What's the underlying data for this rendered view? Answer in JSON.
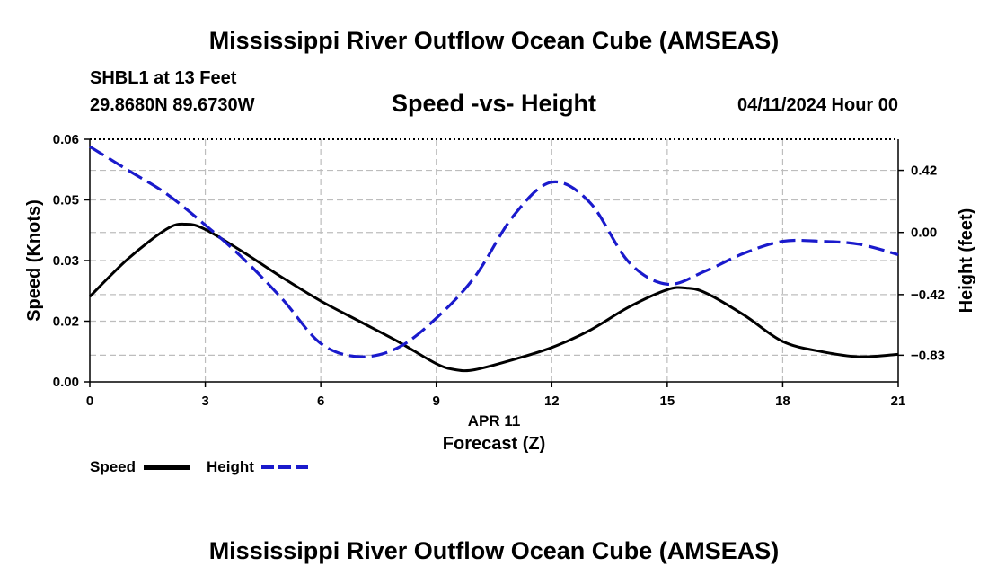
{
  "titles": {
    "main": "Mississippi River Outflow Ocean Cube (AMSEAS)",
    "station": "SHBL1 at 13 Feet",
    "coords": "29.8680N  89.6730W",
    "subtitle": "Speed -vs- Height",
    "datetime": "04/11/2024 Hour 00",
    "bottom": "Mississippi River Outflow Ocean Cube (AMSEAS)"
  },
  "colors": {
    "speed": "#000000",
    "height": "#1a1acc",
    "grid": "#bdbdbd"
  },
  "chart_data": {
    "type": "line",
    "title": "Speed -vs- Height",
    "xlabel": "Forecast (Z)",
    "xsublabel": "APR 11",
    "ylabel": "Speed (Knots)",
    "y2label": "Height (feet)",
    "xlim": [
      0,
      21
    ],
    "ylim": [
      0,
      0.06
    ],
    "y2lim": [
      -1.01,
      0.63
    ],
    "x_ticks": [
      0,
      3,
      6,
      9,
      12,
      15,
      18,
      21
    ],
    "x_tick_labels": [
      "0",
      "3",
      "6",
      "9",
      "12",
      "15",
      "18",
      "21"
    ],
    "y_ticks": [
      0,
      0.015,
      0.03,
      0.045,
      0.06
    ],
    "y_tick_labels": [
      "0.00",
      "0.02",
      "0.03",
      "0.05",
      "0.06"
    ],
    "y2_ticks": [
      -0.83,
      -0.42,
      0.0,
      0.42
    ],
    "y2_tick_labels": [
      "−0.83",
      "−0.42",
      "0.00",
      "0.42"
    ],
    "grid": true,
    "legend_position": "bottom-left",
    "series": [
      {
        "name": "Speed",
        "axis": "left",
        "style": "solid",
        "x": [
          0,
          1,
          2,
          2.5,
          3,
          4,
          5,
          6,
          7,
          8,
          9,
          9.5,
          10,
          11,
          12,
          13,
          14,
          15,
          15.5,
          16,
          17,
          18,
          19,
          20,
          21
        ],
        "y": [
          0.0211,
          0.0305,
          0.0378,
          0.039,
          0.0377,
          0.032,
          0.0258,
          0.02,
          0.015,
          0.01,
          0.0045,
          0.003,
          0.003,
          0.0055,
          0.0085,
          0.0128,
          0.0185,
          0.0228,
          0.0232,
          0.022,
          0.0165,
          0.01,
          0.0075,
          0.0062,
          0.0068
        ]
      },
      {
        "name": "Height",
        "axis": "right",
        "style": "dashed",
        "x": [
          0,
          1,
          2,
          3,
          4,
          5,
          6,
          7,
          8,
          9,
          10,
          11,
          12,
          13,
          14,
          15,
          16,
          17,
          18,
          19,
          20,
          21
        ],
        "y": [
          0.58,
          0.42,
          0.26,
          0.05,
          -0.18,
          -0.45,
          -0.75,
          -0.84,
          -0.78,
          -0.58,
          -0.3,
          0.11,
          0.34,
          0.2,
          -0.2,
          -0.35,
          -0.26,
          -0.14,
          -0.06,
          -0.06,
          -0.08,
          -0.15
        ]
      }
    ]
  }
}
